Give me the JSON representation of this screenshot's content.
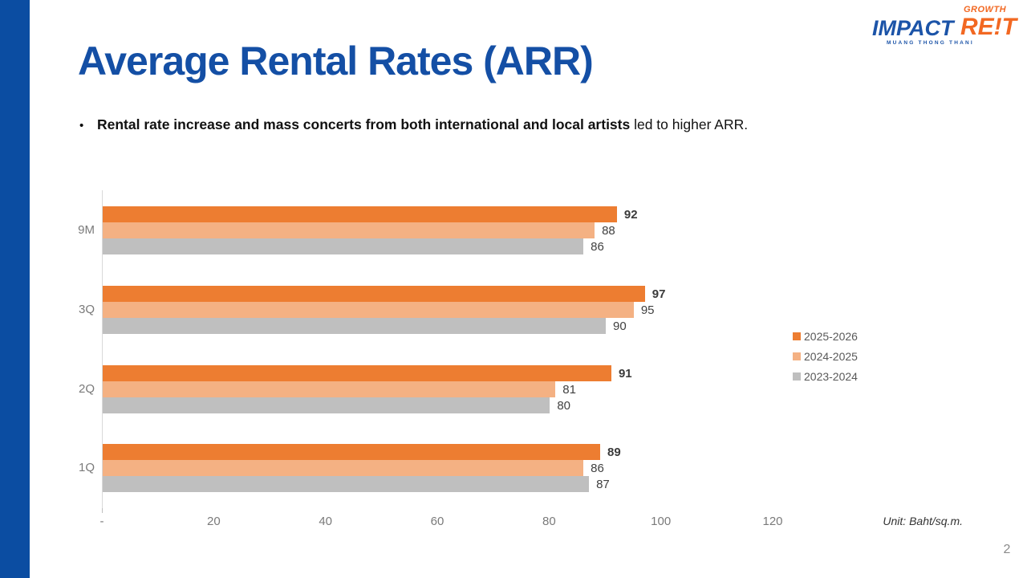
{
  "slide": {
    "title": "Average Rental Rates (ARR)",
    "bullet_marker": "•",
    "bullet_bold": "Rental rate increase and mass concerts from both international and local artists",
    "bullet_rest": " led to higher ARR.",
    "page_number": "2"
  },
  "logo": {
    "impact": "IMPACT",
    "reit": "RE!T",
    "growth": "GROWTH",
    "subtitle": "MUANG THONG THANI"
  },
  "colors": {
    "accent_bar_blue": "#0B4DA2",
    "title_blue": "#144FA5",
    "series_2025_2026": "#ED7D31",
    "series_2024_2025": "#F4B183",
    "series_2023_2024": "#BFBFBF",
    "axis_line": "#D9D9D9",
    "logo_blue": "#1C54A8",
    "logo_orange": "#F26822"
  },
  "chart_data": {
    "type": "bar",
    "orientation": "horizontal",
    "title": "",
    "xlabel": "",
    "ylabel": "",
    "unit": "Unit: Baht/sq.m.",
    "categories": [
      "9M",
      "3Q",
      "2Q",
      "1Q"
    ],
    "series": [
      {
        "name": "2025-2026",
        "color": "#ED7D31",
        "bold_labels": true,
        "values": [
          92,
          97,
          91,
          89
        ]
      },
      {
        "name": "2024-2025",
        "color": "#F4B183",
        "bold_labels": false,
        "values": [
          88,
          95,
          81,
          86
        ]
      },
      {
        "name": "2023-2024",
        "color": "#BFBFBF",
        "bold_labels": false,
        "values": [
          86,
          90,
          80,
          87
        ]
      }
    ],
    "x_ticks": [
      {
        "label": "-",
        "value": 0
      },
      {
        "label": "20",
        "value": 20
      },
      {
        "label": "40",
        "value": 40
      },
      {
        "label": "60",
        "value": 60
      },
      {
        "label": "80",
        "value": 80
      },
      {
        "label": "100",
        "value": 100
      },
      {
        "label": "120",
        "value": 120
      }
    ],
    "xlim": [
      0,
      120
    ],
    "grid": false,
    "legend_position": "right"
  }
}
